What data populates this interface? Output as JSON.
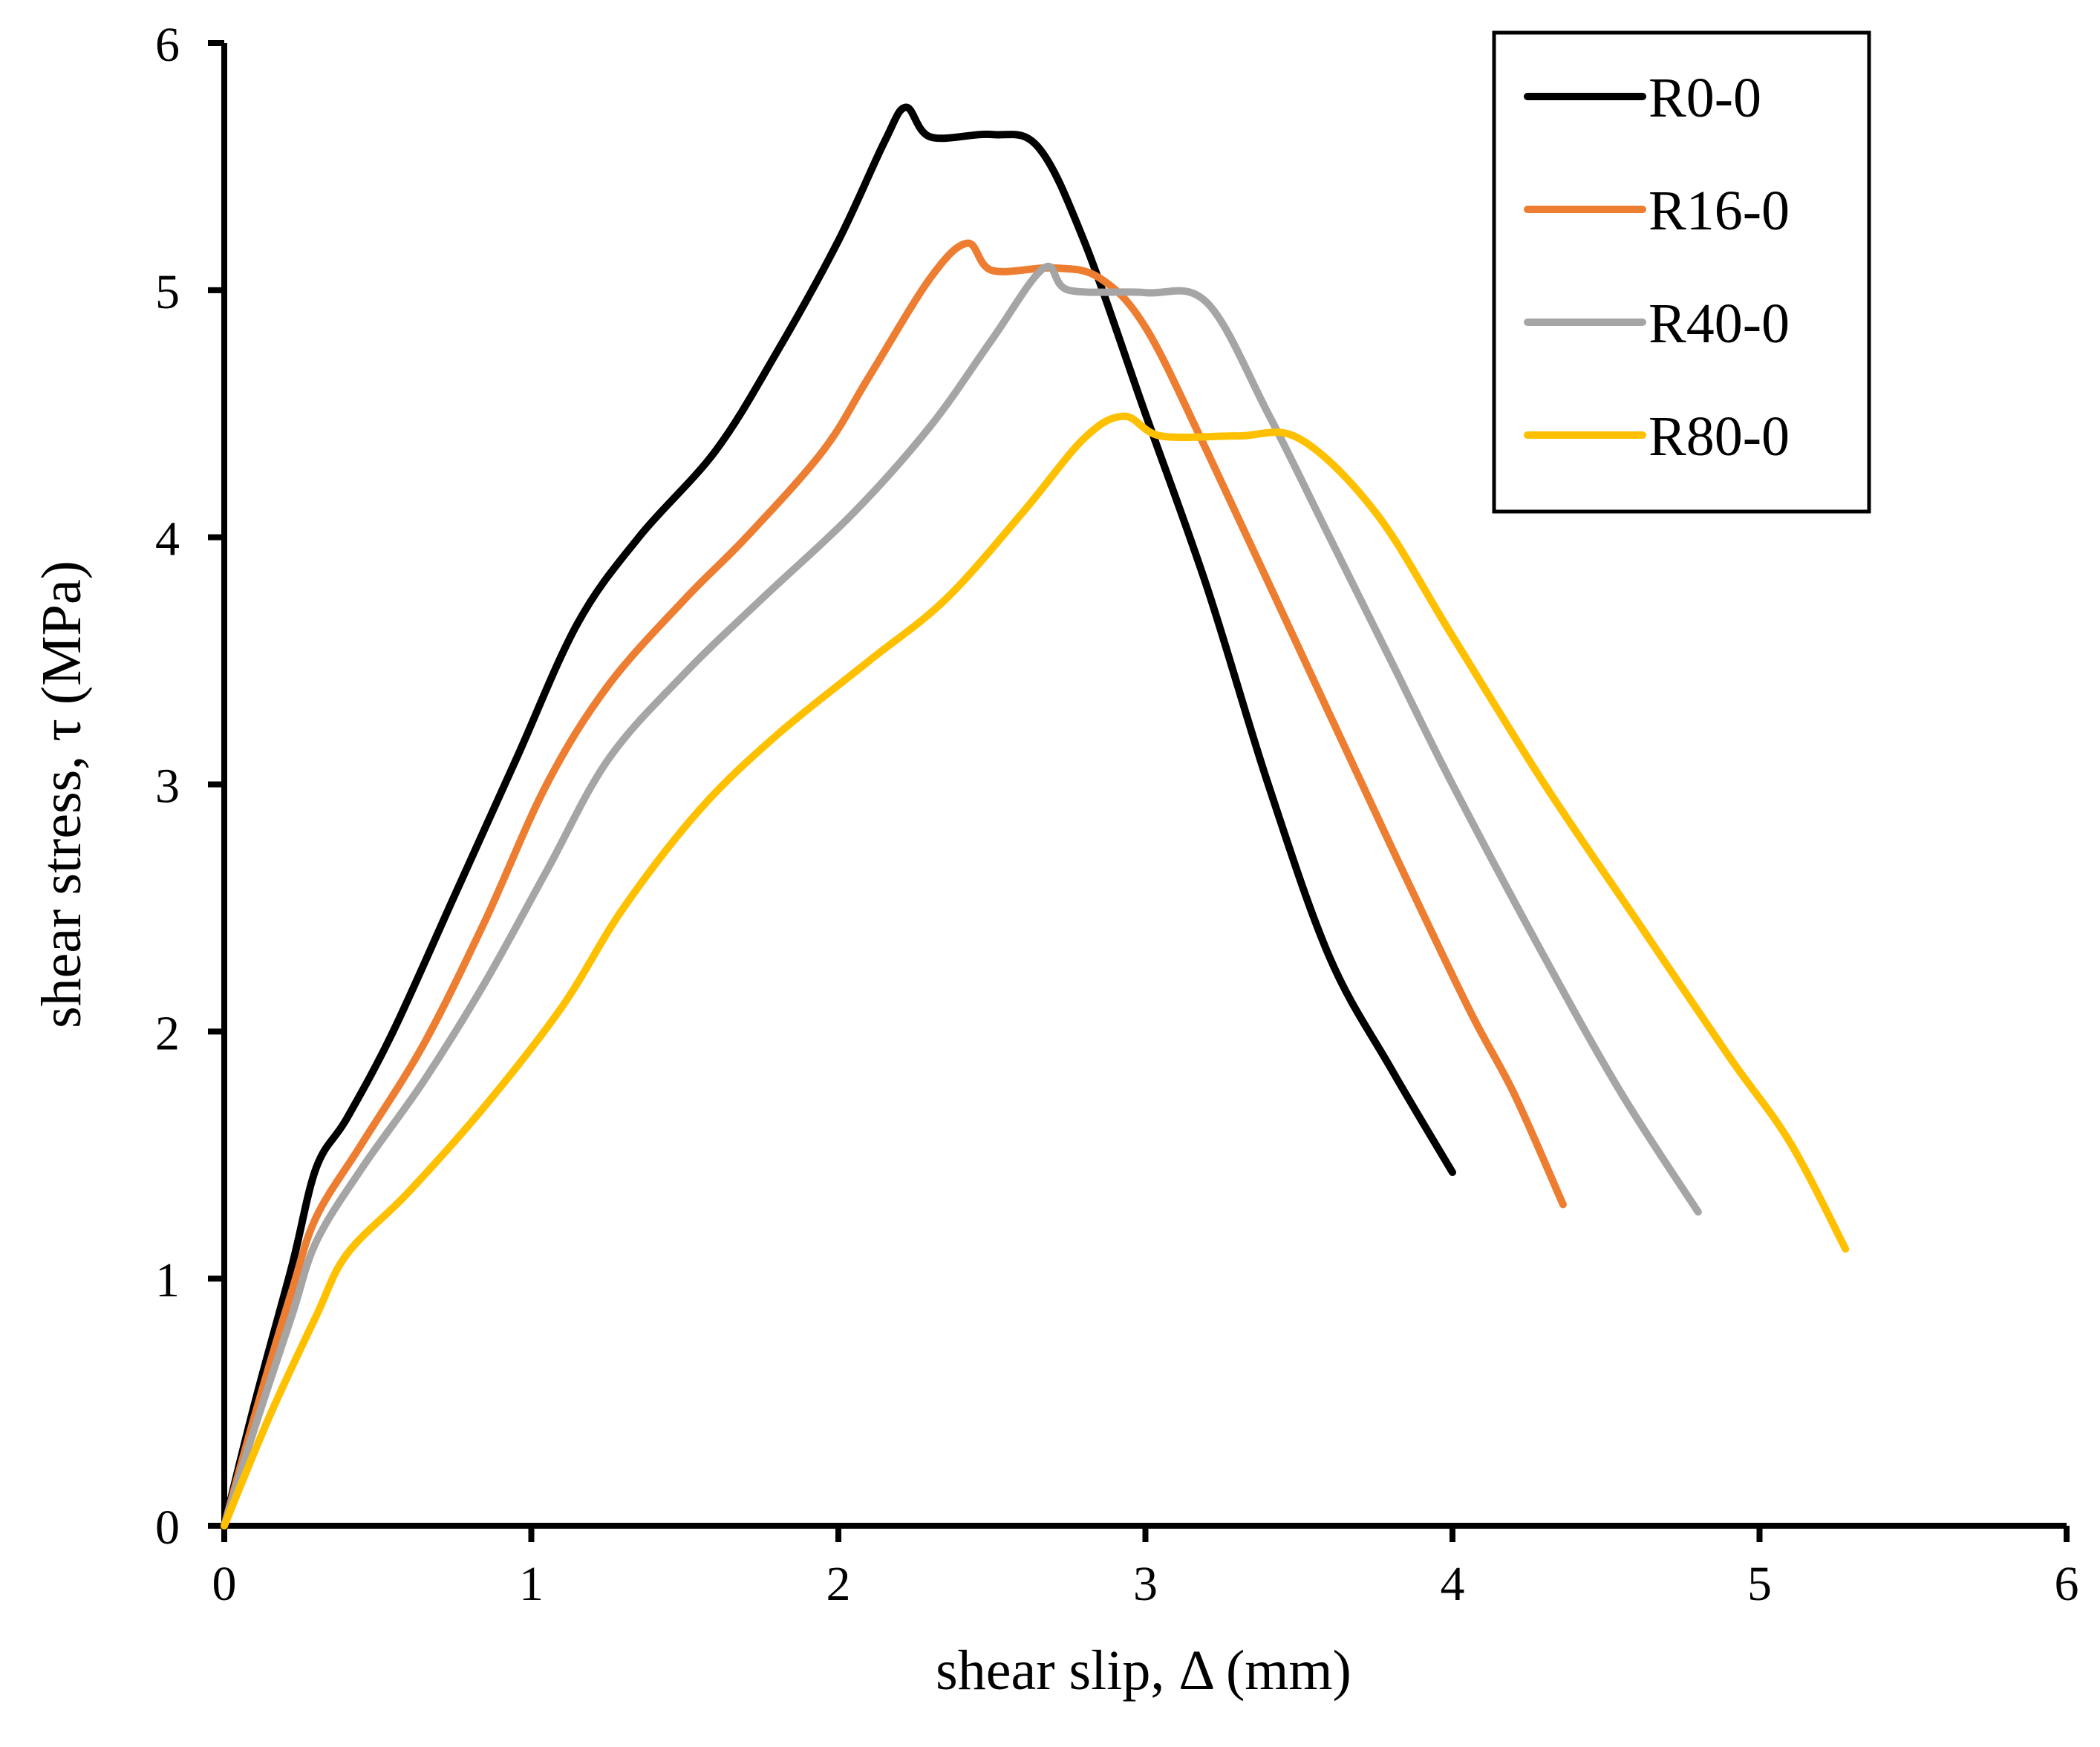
{
  "chart_data": {
    "type": "line",
    "title": "",
    "xlabel": "shear slip, Δ (mm)",
    "ylabel": "shear stress,  τ (MPa)",
    "xlim": [
      0,
      6
    ],
    "ylim": [
      0,
      6
    ],
    "xticks": [
      "0",
      "1",
      "2",
      "3",
      "4",
      "5",
      "6"
    ],
    "yticks": [
      "0",
      "1",
      "2",
      "3",
      "4",
      "5",
      "6"
    ],
    "grid": false,
    "legend_position": "top-right",
    "series": [
      {
        "name": "R0-0",
        "color": "#000000",
        "points": [
          [
            0,
            0
          ],
          [
            0.1,
            0.5
          ],
          [
            0.22,
            1.05
          ],
          [
            0.3,
            1.45
          ],
          [
            0.4,
            1.65
          ],
          [
            0.55,
            2.0
          ],
          [
            0.75,
            2.55
          ],
          [
            0.95,
            3.1
          ],
          [
            1.15,
            3.65
          ],
          [
            1.35,
            4.0
          ],
          [
            1.6,
            4.35
          ],
          [
            1.8,
            4.75
          ],
          [
            2.0,
            5.2
          ],
          [
            2.15,
            5.6
          ],
          [
            2.22,
            5.74
          ],
          [
            2.3,
            5.62
          ],
          [
            2.5,
            5.63
          ],
          [
            2.65,
            5.58
          ],
          [
            2.8,
            5.2
          ],
          [
            3.0,
            4.5
          ],
          [
            3.2,
            3.8
          ],
          [
            3.4,
            3.0
          ],
          [
            3.6,
            2.3
          ],
          [
            3.8,
            1.85
          ],
          [
            4.0,
            1.43
          ]
        ]
      },
      {
        "name": "R16-0",
        "color": "#ED7D31",
        "points": [
          [
            0,
            0
          ],
          [
            0.1,
            0.45
          ],
          [
            0.22,
            0.95
          ],
          [
            0.3,
            1.25
          ],
          [
            0.45,
            1.55
          ],
          [
            0.65,
            1.95
          ],
          [
            0.85,
            2.45
          ],
          [
            1.05,
            3.0
          ],
          [
            1.25,
            3.4
          ],
          [
            1.5,
            3.75
          ],
          [
            1.7,
            4.0
          ],
          [
            1.95,
            4.35
          ],
          [
            2.1,
            4.65
          ],
          [
            2.3,
            5.05
          ],
          [
            2.42,
            5.19
          ],
          [
            2.5,
            5.08
          ],
          [
            2.7,
            5.09
          ],
          [
            2.85,
            5.05
          ],
          [
            3.0,
            4.85
          ],
          [
            3.2,
            4.35
          ],
          [
            3.5,
            3.55
          ],
          [
            3.8,
            2.75
          ],
          [
            4.05,
            2.1
          ],
          [
            4.2,
            1.75
          ],
          [
            4.36,
            1.3
          ]
        ]
      },
      {
        "name": "R40-0",
        "color": "#A5A5A5",
        "points": [
          [
            0,
            0
          ],
          [
            0.1,
            0.4
          ],
          [
            0.22,
            0.85
          ],
          [
            0.3,
            1.15
          ],
          [
            0.45,
            1.45
          ],
          [
            0.65,
            1.8
          ],
          [
            0.85,
            2.2
          ],
          [
            1.05,
            2.65
          ],
          [
            1.25,
            3.1
          ],
          [
            1.5,
            3.45
          ],
          [
            1.75,
            3.75
          ],
          [
            2.05,
            4.1
          ],
          [
            2.3,
            4.45
          ],
          [
            2.5,
            4.8
          ],
          [
            2.67,
            5.09
          ],
          [
            2.75,
            5.0
          ],
          [
            3.0,
            4.99
          ],
          [
            3.2,
            4.95
          ],
          [
            3.4,
            4.5
          ],
          [
            3.6,
            4.0
          ],
          [
            3.8,
            3.5
          ],
          [
            4.0,
            3.0
          ],
          [
            4.3,
            2.3
          ],
          [
            4.55,
            1.75
          ],
          [
            4.8,
            1.27
          ]
        ]
      },
      {
        "name": "R80-0",
        "color": "#FFC000",
        "points": [
          [
            0,
            0
          ],
          [
            0.15,
            0.45
          ],
          [
            0.3,
            0.85
          ],
          [
            0.4,
            1.1
          ],
          [
            0.6,
            1.35
          ],
          [
            0.85,
            1.7
          ],
          [
            1.1,
            2.1
          ],
          [
            1.3,
            2.5
          ],
          [
            1.55,
            2.9
          ],
          [
            1.8,
            3.2
          ],
          [
            2.1,
            3.5
          ],
          [
            2.35,
            3.75
          ],
          [
            2.6,
            4.1
          ],
          [
            2.8,
            4.4
          ],
          [
            2.93,
            4.49
          ],
          [
            3.05,
            4.41
          ],
          [
            3.3,
            4.41
          ],
          [
            3.5,
            4.4
          ],
          [
            3.75,
            4.1
          ],
          [
            4.0,
            3.6
          ],
          [
            4.3,
            3.0
          ],
          [
            4.6,
            2.45
          ],
          [
            4.9,
            1.9
          ],
          [
            5.1,
            1.55
          ],
          [
            5.28,
            1.12
          ]
        ]
      }
    ]
  }
}
